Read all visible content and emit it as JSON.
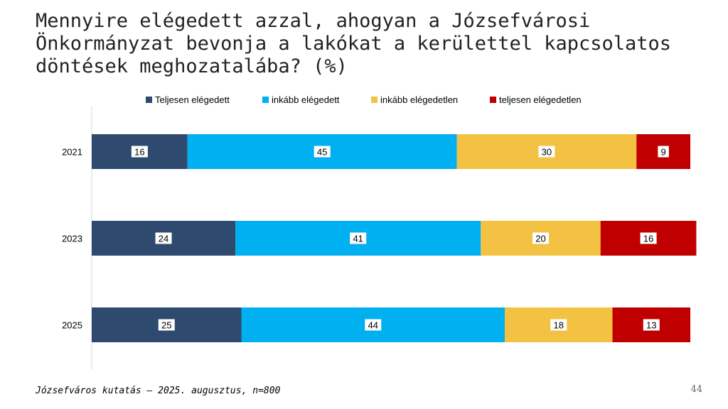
{
  "slide": {
    "title": "Mennyire elégedett azzal, ahogyan a Józsefvárosi Önkormányzat bevonja a lakókat a kerülettel kapcsolatos döntések meghozatalába? (%)",
    "footer": "Józsefváros kutatás – 2025. augusztus, n=800",
    "page_number": "44"
  },
  "chart_data": {
    "type": "bar",
    "orientation": "horizontal",
    "stacked": true,
    "categories": [
      "2021",
      "2023",
      "2025"
    ],
    "series": [
      {
        "name": "Teljesen elégedett",
        "color": "#2e4a6f",
        "values": [
          16,
          24,
          25
        ]
      },
      {
        "name": "inkább elégedett",
        "color": "#00b0f0",
        "values": [
          45,
          41,
          44
        ]
      },
      {
        "name": "inkább elégedetlen",
        "color": "#f4c242",
        "values": [
          30,
          20,
          18
        ]
      },
      {
        "name": "teljesen elégedetlen",
        "color": "#c00000",
        "values": [
          9,
          16,
          13
        ]
      }
    ],
    "xlim": [
      0,
      100
    ],
    "legend": "top",
    "grid": false,
    "title": "",
    "xlabel": "",
    "ylabel": ""
  }
}
